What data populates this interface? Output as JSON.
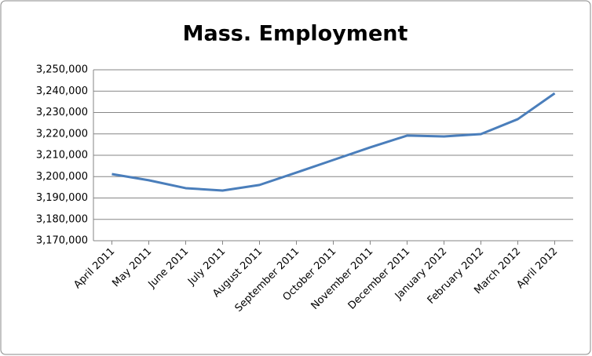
{
  "chart_data": {
    "type": "line",
    "title": "Mass. Employment",
    "categories": [
      "April 2011",
      "May 2011",
      "June 2011",
      "July 2011",
      "August 2011",
      "September 2011",
      "October 2011",
      "November 2011",
      "December 2011",
      "January 2012",
      "February 2012",
      "March 2012",
      "April 2012"
    ],
    "series": [
      {
        "name": "Employment",
        "color": "#4a7ebb",
        "values": [
          3201200,
          3198300,
          3194600,
          3193500,
          3196100,
          3201900,
          3207800,
          3213700,
          3219200,
          3218800,
          3219900,
          3226900,
          3239000
        ]
      }
    ],
    "ylim": [
      3170000,
      3250000
    ],
    "yticks": [
      {
        "value": 3170000,
        "label": "3,170,000"
      },
      {
        "value": 3180000,
        "label": "3,180,000"
      },
      {
        "value": 3190000,
        "label": "3,190,000"
      },
      {
        "value": 3200000,
        "label": "3,200,000"
      },
      {
        "value": 3210000,
        "label": "3,210,000"
      },
      {
        "value": 3220000,
        "label": "3,220,000"
      },
      {
        "value": 3230000,
        "label": "3,230,000"
      },
      {
        "value": 3240000,
        "label": "3,240,000"
      },
      {
        "value": 3250000,
        "label": "3,250,000"
      }
    ],
    "grid": true
  }
}
